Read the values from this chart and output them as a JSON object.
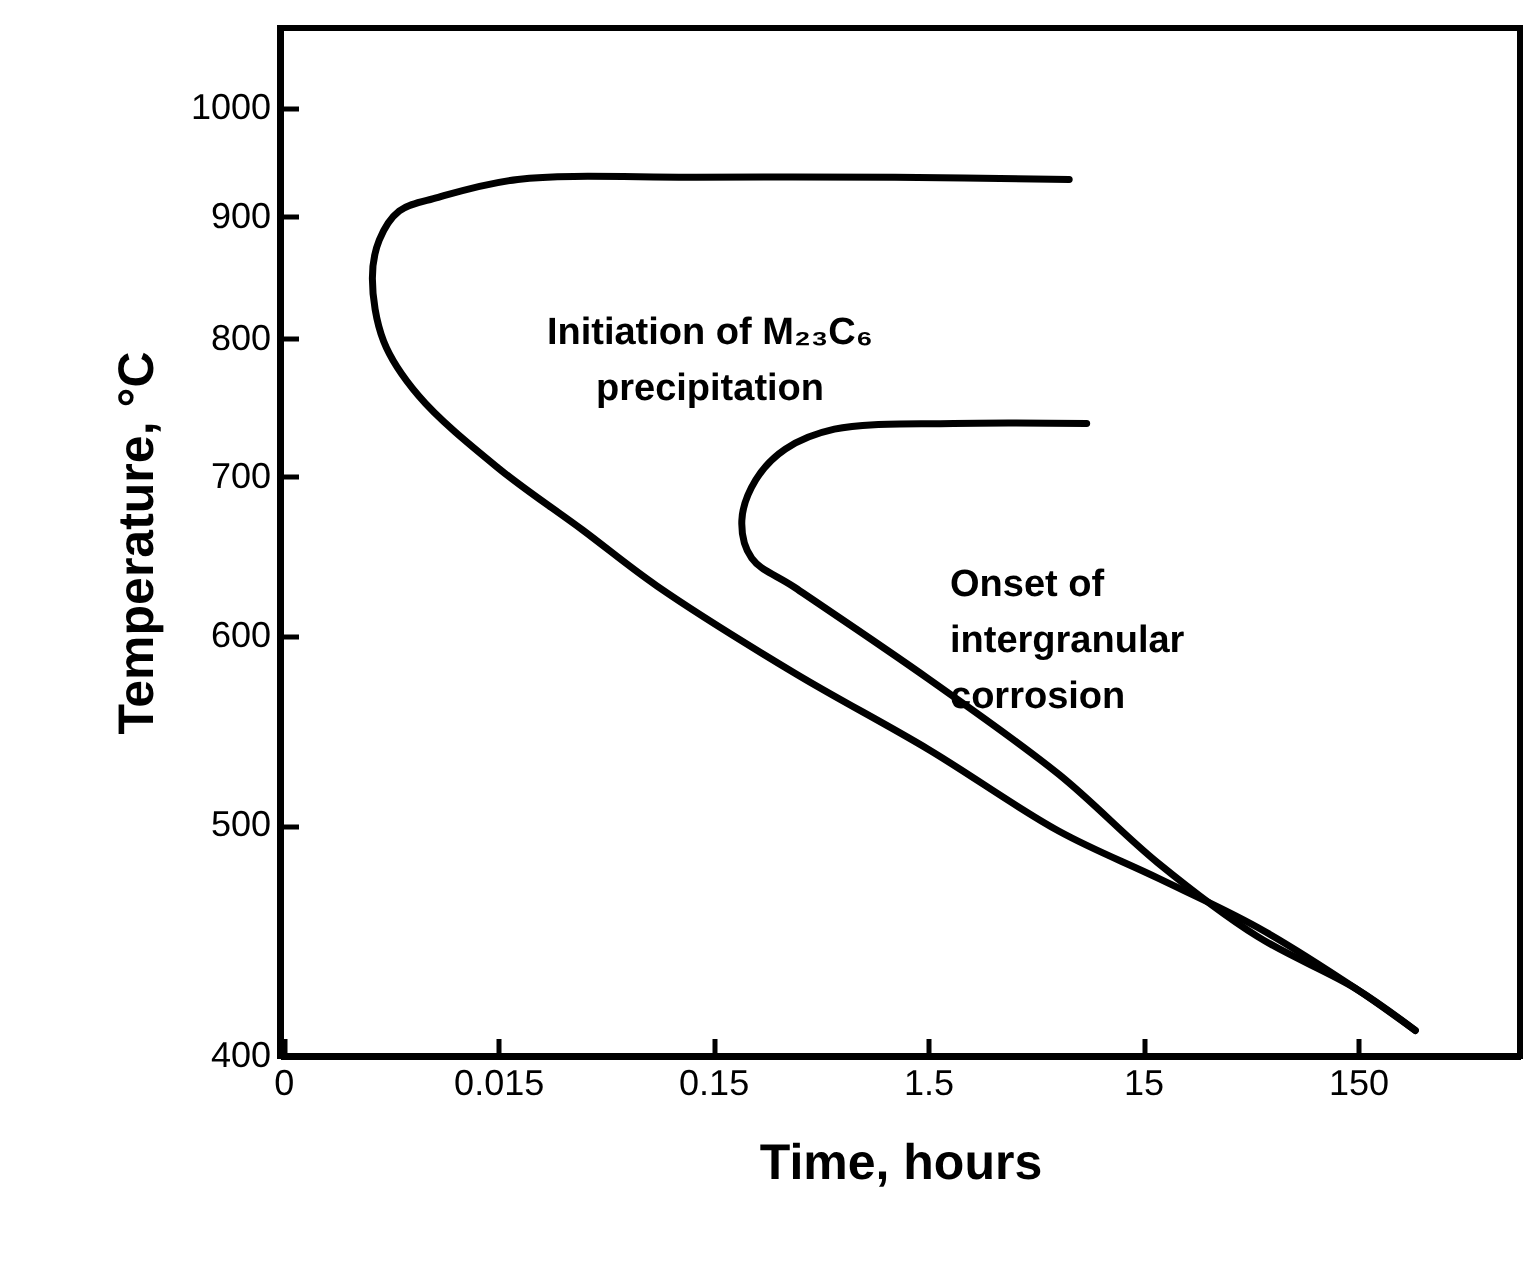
{
  "chart_data": {
    "type": "line",
    "xlabel": "Time, hours",
    "ylabel": "Temperature, °C",
    "log": "xy",
    "grid": false,
    "marker": "none",
    "line_style": "solid",
    "xlim": [
      0.00145,
      850
    ],
    "ylim": [
      400,
      1080
    ],
    "xticks": [
      {
        "value": 0.0015,
        "label": "0"
      },
      0.015,
      0.15,
      1.5,
      15,
      150
    ],
    "yticks": [
      400,
      500,
      600,
      700,
      800,
      900,
      1000
    ],
    "series": [
      {
        "color": "#000000",
        "x": [
          6.8,
          1.05,
          0.125,
          0.0185,
          0.0079,
          0.0052,
          0.0042,
          0.0039,
          0.0044,
          0.0064,
          0.015,
          0.037,
          0.082,
          0.36,
          1.5,
          6.1,
          17.6,
          51,
          146,
          277
        ],
        "values": [
          933,
          935,
          935,
          933,
          917,
          905,
          880,
          848,
          798,
          757,
          706,
          665,
          630,
          579,
          538,
          497,
          475,
          453,
          427,
          410
        ]
      },
      {
        "color": "#000000",
        "x": [
          8.2,
          1.97,
          0.55,
          0.325,
          0.237,
          0.204,
          0.227,
          0.36,
          1.5,
          6.1,
          17.6,
          51,
          146,
          277
        ],
        "values": [
          737,
          737,
          733,
          719,
          698,
          671,
          647,
          629,
          576,
          525,
          482,
          449,
          427,
          410
        ]
      }
    ],
    "annotations": [
      "Initiation of  M₂₃C₆\nprecipitation",
      "Onset of\nintergranular\ncorrosion"
    ]
  }
}
